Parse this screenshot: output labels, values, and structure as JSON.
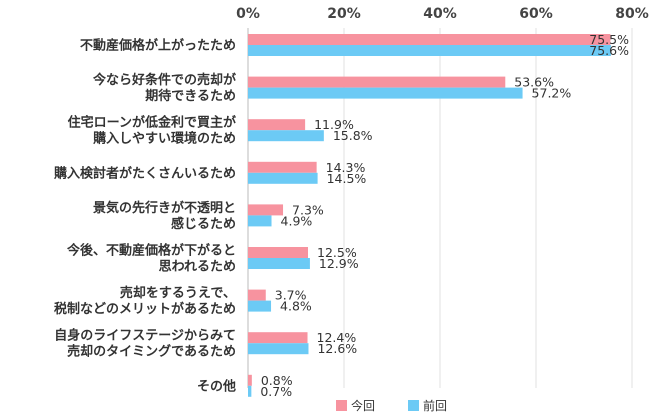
{
  "chart_data": {
    "type": "bar",
    "orientation": "horizontal",
    "categories": [
      [
        "不動産価格が上がったため"
      ],
      [
        "今なら好条件での売却が",
        "期待できるため"
      ],
      [
        "住宅ローンが低金利で買主が",
        "購入しやすい環境のため"
      ],
      [
        "購入検討者がたくさんいるため"
      ],
      [
        "景気の先行きが不透明と",
        "感じるため"
      ],
      [
        "今後、不動産価格が下がると",
        "思われるため"
      ],
      [
        "売却をするうえで、",
        "税制などのメリットがあるため"
      ],
      [
        "自身のライフステージからみて",
        "売却のタイミングであるため"
      ],
      [
        "その他"
      ]
    ],
    "series": [
      {
        "name": "今回",
        "color": "#f7939f",
        "values": [
          75.5,
          53.6,
          11.9,
          14.3,
          7.3,
          12.5,
          3.7,
          12.4,
          0.8
        ],
        "labels": [
          "75.5%",
          "53.6%",
          "11.9%",
          "14.3%",
          "7.3%",
          "12.5%",
          "3.7%",
          "12.4%",
          "0.8%"
        ]
      },
      {
        "name": "前回",
        "color": "#6ccaf5",
        "values": [
          75.6,
          57.2,
          15.8,
          14.5,
          4.9,
          12.9,
          4.8,
          12.6,
          0.7
        ],
        "labels": [
          "75.6%",
          "57.2%",
          "15.8%",
          "14.5%",
          "4.9%",
          "12.9%",
          "4.8%",
          "12.6%",
          "0.7%"
        ]
      }
    ],
    "xlim": [
      0,
      80
    ],
    "ticks": [
      0,
      20,
      40,
      60,
      80
    ],
    "tick_labels": [
      "0%",
      "20%",
      "40%",
      "60%",
      "80%"
    ],
    "grid": true,
    "legend": "bottom"
  }
}
